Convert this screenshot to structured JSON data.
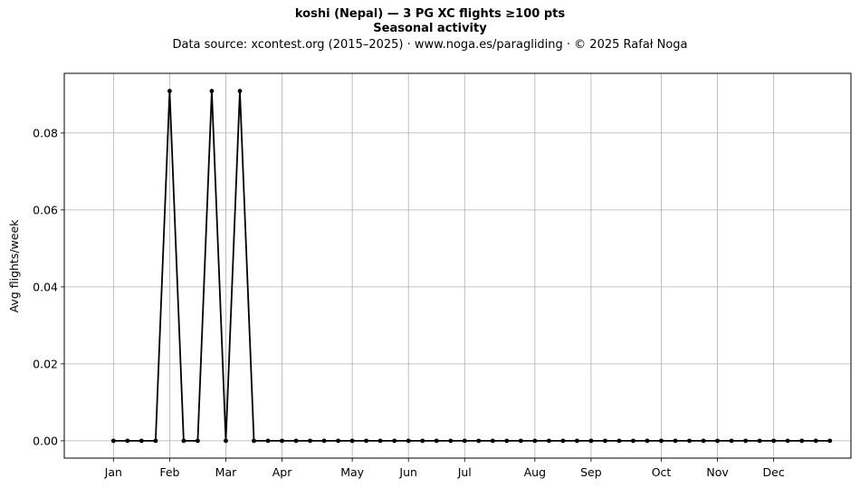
{
  "header": {
    "title": "koshi (Nepal)  —  3 PG XC flights ≥100 pts",
    "subtitle": "Seasonal activity",
    "source": "Data source: xcontest.org (2015–2025)  ·  www.noga.es/paragliding  ·  © 2025 Rafał Noga"
  },
  "chart_data": {
    "type": "line",
    "title": "koshi (Nepal)  —  3 PG XC flights ≥100 pts",
    "subtitle": "Seasonal activity",
    "xlabel": "",
    "ylabel": "Avg flights/week",
    "x_unit": "week of year",
    "xlim": [
      -2.5,
      53.5
    ],
    "ylim": [
      -0.0045,
      0.0955
    ],
    "x_ticks": [
      {
        "label": "Jan",
        "week": 1
      },
      {
        "label": "Feb",
        "week": 5
      },
      {
        "label": "Mar",
        "week": 9
      },
      {
        "label": "Apr",
        "week": 13
      },
      {
        "label": "May",
        "week": 18
      },
      {
        "label": "Jun",
        "week": 22
      },
      {
        "label": "Jul",
        "week": 26
      },
      {
        "label": "Aug",
        "week": 31
      },
      {
        "label": "Sep",
        "week": 35
      },
      {
        "label": "Oct",
        "week": 40
      },
      {
        "label": "Nov",
        "week": 44
      },
      {
        "label": "Dec",
        "week": 48
      }
    ],
    "y_ticks": [
      0.0,
      0.02,
      0.04,
      0.06,
      0.08
    ],
    "y_tick_labels": [
      "0.00",
      "0.02",
      "0.04",
      "0.06",
      "0.08"
    ],
    "grid": true,
    "color": "#000000",
    "series": [
      {
        "x": [
          1,
          2,
          3,
          4,
          5,
          6,
          7,
          8,
          9,
          10,
          11,
          12,
          13,
          14,
          15,
          16,
          17,
          18,
          19,
          20,
          21,
          22,
          23,
          24,
          25,
          26,
          27,
          28,
          29,
          30,
          31,
          32,
          33,
          34,
          35,
          36,
          37,
          38,
          39,
          40,
          41,
          42,
          43,
          44,
          45,
          46,
          47,
          48,
          49,
          50,
          51,
          52
        ],
        "values": [
          0,
          0,
          0,
          0,
          0.0909,
          0,
          0,
          0.0909,
          0,
          0.0909,
          0,
          0,
          0,
          0,
          0,
          0,
          0,
          0,
          0,
          0,
          0,
          0,
          0,
          0,
          0,
          0,
          0,
          0,
          0,
          0,
          0,
          0,
          0,
          0,
          0,
          0,
          0,
          0,
          0,
          0,
          0,
          0,
          0,
          0,
          0,
          0,
          0,
          0,
          0,
          0,
          0,
          0
        ]
      }
    ]
  }
}
